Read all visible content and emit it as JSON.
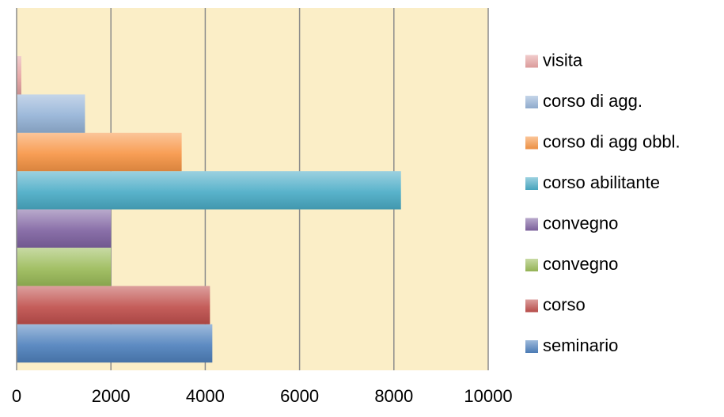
{
  "chart_data": {
    "type": "bar",
    "orientation": "horizontal",
    "title": "",
    "xlabel": "",
    "ylabel": "",
    "xlim": [
      0,
      10000
    ],
    "x_ticks": [
      0,
      2000,
      4000,
      6000,
      8000,
      10000
    ],
    "grid": "vertical",
    "plot_background": "#fbeec7",
    "legend_position": "right",
    "series": [
      {
        "name": "seminario",
        "value": 4150,
        "color": "#4f81bd"
      },
      {
        "name": "corso",
        "value": 4100,
        "color": "#c0504d"
      },
      {
        "name": "convegno",
        "value": 2000,
        "color": "#9bbb59"
      },
      {
        "name": "convegno",
        "value": 2000,
        "color": "#8064a2"
      },
      {
        "name": "corso abilitante",
        "value": 8150,
        "color": "#4bacc6"
      },
      {
        "name": "corso di agg obbl.",
        "value": 3500,
        "color": "#f79646"
      },
      {
        "name": "corso di agg.",
        "value": 1450,
        "color": "#95b3d7"
      },
      {
        "name": "visita",
        "value": 100,
        "color": "#e6a3a2"
      }
    ]
  }
}
